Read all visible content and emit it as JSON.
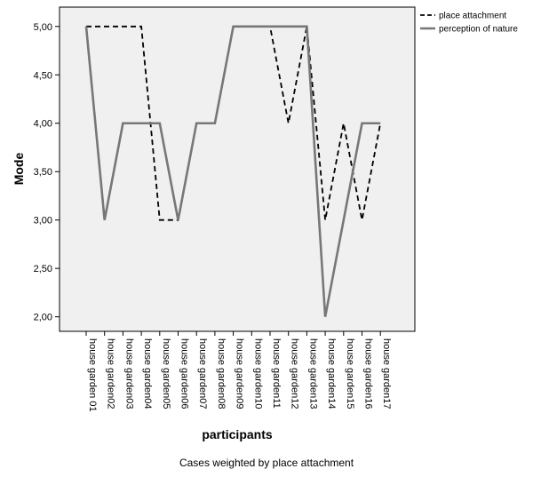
{
  "chart_data": {
    "type": "line",
    "xlabel": "participants",
    "ylabel": "Mode",
    "footnote": "Cases weighted by place attachment",
    "categories": [
      "house garden 01",
      "house garden02",
      "house garden03",
      "house garden04",
      "house garden05",
      "house garden06",
      "house garden07",
      "house garden08",
      "house garden09",
      "house garden10",
      "house garden11",
      "house garden12",
      "house garden13",
      "house garden14",
      "house garden15",
      "house garden16",
      "house garden17"
    ],
    "ylim": [
      1.85,
      5.2
    ],
    "yticks": [
      2.0,
      2.5,
      3.0,
      3.5,
      4.0,
      4.5,
      5.0
    ],
    "ytick_labels": [
      "2,00",
      "2,50",
      "3,00",
      "3,50",
      "4,00",
      "4,50",
      "5,00"
    ],
    "grid": false,
    "legend_position": "top-right",
    "plot_background": "#f0f0f0",
    "series": [
      {
        "name": "place attachment",
        "style": "dashed",
        "color": "#000000",
        "values": [
          5,
          5,
          5,
          5,
          3,
          3,
          4,
          4,
          5,
          5,
          5,
          4,
          5,
          3,
          4,
          3,
          4
        ],
        "steps": [
          null,
          null,
          null,
          null,
          null,
          "hold",
          null,
          null,
          null,
          null,
          null,
          null,
          null,
          null,
          null,
          null,
          null
        ]
      },
      {
        "name": "perception of nature",
        "style": "solid",
        "color": "#777777",
        "values": [
          5,
          3,
          4,
          4,
          4,
          3,
          4,
          4,
          5,
          5,
          5,
          5,
          5,
          2,
          3,
          4,
          4
        ],
        "steps": []
      }
    ]
  }
}
